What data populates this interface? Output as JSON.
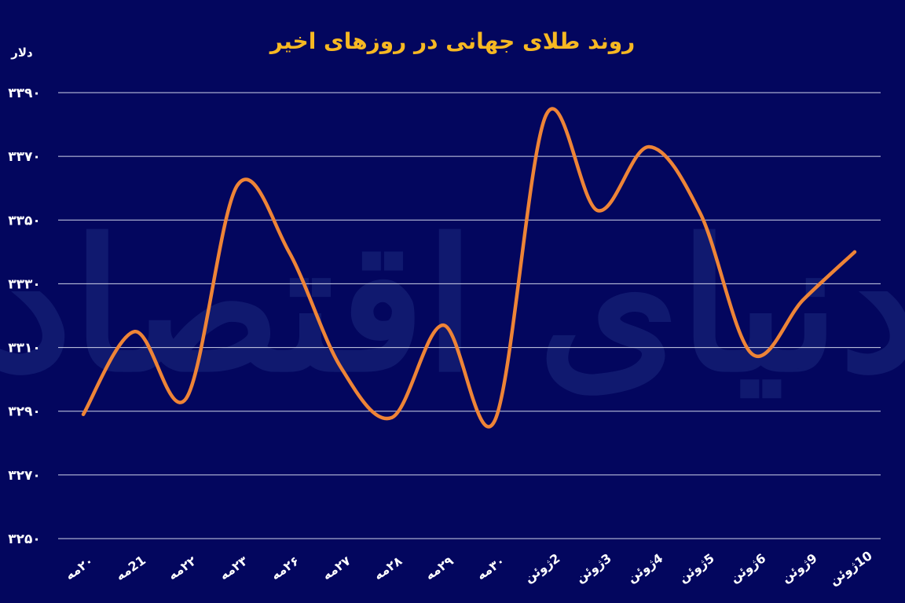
{
  "chart_data": {
    "type": "line",
    "title": "روند طلای جهانی در روزهای اخیر",
    "ylabel": "دلار",
    "ylim": [
      3250,
      3390
    ],
    "yticks": [
      3390,
      3370,
      3350,
      3330,
      3310,
      3290,
      3270,
      3250
    ],
    "ytick_labels": [
      "۳۳۹۰",
      "۳۳۷۰",
      "۳۳۵۰",
      "۳۳۳۰",
      "۳۳۱۰",
      "۳۲۹۰",
      "۳۲۷۰",
      "۳۲۵۰"
    ],
    "categories": [
      "۲۰مه",
      "21مه",
      "۲۲مه",
      "۲۳مه",
      "۲۶مه",
      "۲۷مه",
      "۲۸مه",
      "۲۹مه",
      "۳۰مه",
      "2ژوئن",
      "3ژوئن",
      "4ژوئن",
      "5ژوئن",
      "6ژوئن",
      "9ژوئن",
      "10ژوئن"
    ],
    "values": [
      3289,
      3315,
      3294,
      3361,
      3340,
      3304,
      3288,
      3317,
      3287,
      3383,
      3353,
      3373,
      3352,
      3308,
      3325,
      3340
    ],
    "grid": true,
    "line_color": "#ee8437"
  },
  "watermark": "دنیای اقتصاد"
}
